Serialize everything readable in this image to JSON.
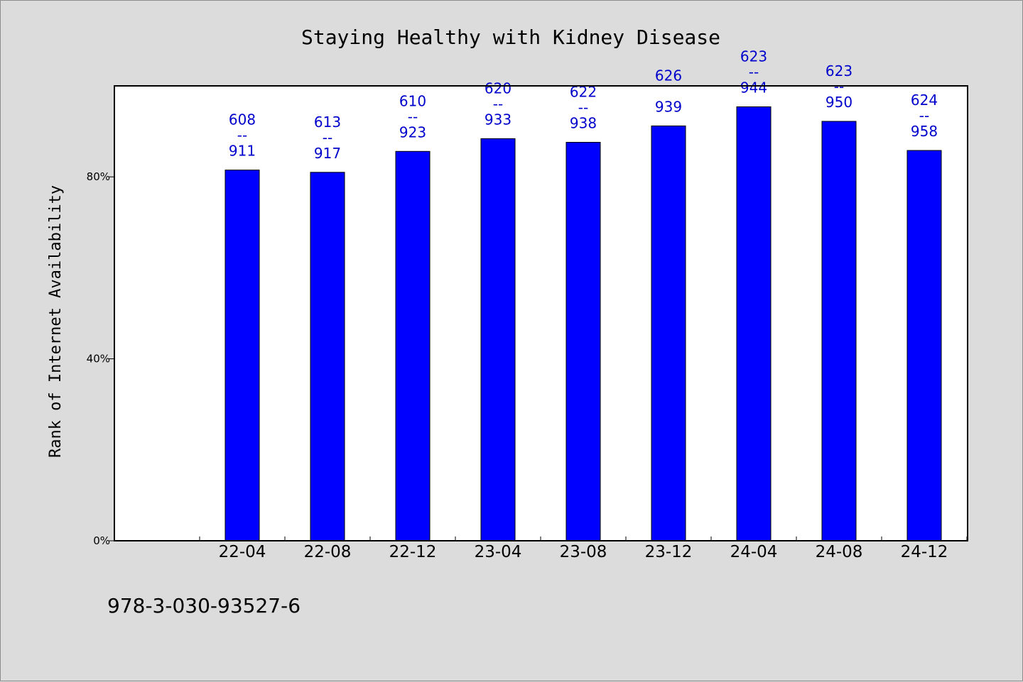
{
  "chart_data": {
    "type": "bar",
    "title": "Staying Healthy with Kidney Disease",
    "xlabel": "",
    "ylabel": "Rank of Internet Availability",
    "ylim": [
      0,
      100
    ],
    "y_ticks": [
      0,
      40,
      80
    ],
    "y_tick_labels": [
      "0%",
      "40%",
      "80%"
    ],
    "categories": [
      "22-04",
      "22-08",
      "22-12",
      "23-04",
      "23-08",
      "23-12",
      "24-04",
      "24-08",
      "24-12"
    ],
    "values": [
      81.5,
      81.0,
      85.6,
      88.4,
      87.6,
      91.2,
      95.4,
      92.2,
      85.8
    ],
    "data_labels": [
      [
        "608",
        "--",
        "911"
      ],
      [
        "613",
        "--",
        "917"
      ],
      [
        "610",
        "--",
        "923"
      ],
      [
        "620",
        "--",
        "933"
      ],
      [
        "622",
        "--",
        "938"
      ],
      [
        "626",
        "",
        "939"
      ],
      [
        "623",
        "--",
        "944"
      ],
      [
        "623",
        "--",
        "950"
      ],
      [
        "624",
        "--",
        "958"
      ]
    ],
    "bar_color": "#0000ff",
    "label_color": "#0000cc",
    "grid": false,
    "legend": "none"
  },
  "footer": {
    "isbn": "978-3-030-93527-6"
  }
}
